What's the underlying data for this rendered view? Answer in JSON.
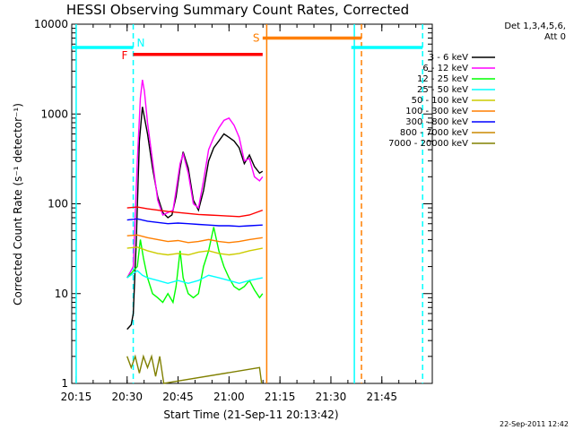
{
  "chart_data": {
    "type": "line",
    "title": "HESSI Observing Summary Count Rates, Corrected",
    "xlabel": "Start Time (21-Sep-11 20:13:42)",
    "ylabel": "Corrected Count Rate (s⁻¹ detector⁻¹)",
    "yscale": "log",
    "ylim": [
      1,
      10000
    ],
    "xlim": [
      20.2283,
      21.9975
    ],
    "x_ticks": [
      {
        "label": "20:15",
        "x": 20.25
      },
      {
        "label": "20:30",
        "x": 20.5
      },
      {
        "label": "20:45",
        "x": 20.75
      },
      {
        "label": "21:00",
        "x": 21.0
      },
      {
        "label": "21:15",
        "x": 21.25
      },
      {
        "label": "21:30",
        "x": 21.5
      },
      {
        "label": "21:45",
        "x": 21.75
      }
    ],
    "y_ticks": [
      {
        "label": "1",
        "y": 1
      },
      {
        "label": "10",
        "y": 10
      },
      {
        "label": "100",
        "y": 100
      },
      {
        "label": "1000",
        "y": 1000
      },
      {
        "label": "10000",
        "y": 10000
      }
    ],
    "legend_header": [
      "Det 1,3,4,5,6,",
      "Att 0"
    ],
    "legend_position": "right",
    "series": [
      {
        "name": "3 - 6 keV",
        "color": "#000000",
        "points": [
          [
            20.5,
            4
          ],
          [
            20.52,
            4.5
          ],
          [
            20.53,
            6
          ],
          [
            20.545,
            40
          ],
          [
            20.56,
            500
          ],
          [
            20.575,
            1200
          ],
          [
            20.6,
            600
          ],
          [
            20.625,
            250
          ],
          [
            20.65,
            120
          ],
          [
            20.675,
            80
          ],
          [
            20.7,
            70
          ],
          [
            20.72,
            75
          ],
          [
            20.74,
            120
          ],
          [
            20.76,
            250
          ],
          [
            20.775,
            380
          ],
          [
            20.8,
            250
          ],
          [
            20.825,
            110
          ],
          [
            20.85,
            85
          ],
          [
            20.875,
            140
          ],
          [
            20.9,
            300
          ],
          [
            20.925,
            420
          ],
          [
            20.95,
            500
          ],
          [
            20.975,
            600
          ],
          [
            21.0,
            550
          ],
          [
            21.025,
            500
          ],
          [
            21.05,
            420
          ],
          [
            21.075,
            280
          ],
          [
            21.1,
            350
          ],
          [
            21.125,
            260
          ],
          [
            21.15,
            220
          ],
          [
            21.165,
            230
          ]
        ]
      },
      {
        "name": "6 - 12 keV",
        "color": "#ff00ff",
        "points": [
          [
            20.5,
            15
          ],
          [
            20.53,
            20
          ],
          [
            20.55,
            300
          ],
          [
            20.565,
            1500
          ],
          [
            20.575,
            2400
          ],
          [
            20.585,
            1800
          ],
          [
            20.6,
            800
          ],
          [
            20.625,
            300
          ],
          [
            20.65,
            110
          ],
          [
            20.675,
            75
          ],
          [
            20.7,
            80
          ],
          [
            20.725,
            85
          ],
          [
            20.74,
            140
          ],
          [
            20.76,
            280
          ],
          [
            20.775,
            360
          ],
          [
            20.8,
            220
          ],
          [
            20.825,
            100
          ],
          [
            20.85,
            90
          ],
          [
            20.875,
            180
          ],
          [
            20.9,
            400
          ],
          [
            20.925,
            550
          ],
          [
            20.95,
            700
          ],
          [
            20.975,
            850
          ],
          [
            21.0,
            900
          ],
          [
            21.025,
            750
          ],
          [
            21.05,
            550
          ],
          [
            21.075,
            300
          ],
          [
            21.1,
            320
          ],
          [
            21.125,
            200
          ],
          [
            21.15,
            180
          ],
          [
            21.165,
            200
          ]
        ]
      },
      {
        "name": "12 - 25 keV",
        "color": "#00ff00",
        "points": [
          [
            20.5,
            15
          ],
          [
            20.55,
            20
          ],
          [
            20.565,
            40
          ],
          [
            20.58,
            25
          ],
          [
            20.6,
            15
          ],
          [
            20.625,
            10
          ],
          [
            20.65,
            9
          ],
          [
            20.675,
            8
          ],
          [
            20.7,
            10
          ],
          [
            20.725,
            8
          ],
          [
            20.74,
            12
          ],
          [
            20.76,
            30
          ],
          [
            20.775,
            15
          ],
          [
            20.8,
            10
          ],
          [
            20.825,
            9
          ],
          [
            20.85,
            10
          ],
          [
            20.875,
            20
          ],
          [
            20.9,
            30
          ],
          [
            20.925,
            55
          ],
          [
            20.95,
            30
          ],
          [
            20.975,
            20
          ],
          [
            21.0,
            15
          ],
          [
            21.025,
            12
          ],
          [
            21.05,
            11
          ],
          [
            21.075,
            12
          ],
          [
            21.1,
            14
          ],
          [
            21.125,
            11
          ],
          [
            21.15,
            9
          ],
          [
            21.165,
            10
          ]
        ]
      },
      {
        "name": "25 - 50 keV",
        "color": "#00ffff",
        "points": [
          [
            20.5,
            15
          ],
          [
            20.55,
            18
          ],
          [
            20.575,
            16
          ],
          [
            20.6,
            15
          ],
          [
            20.65,
            14
          ],
          [
            20.7,
            13
          ],
          [
            20.75,
            14
          ],
          [
            20.8,
            13
          ],
          [
            20.85,
            14
          ],
          [
            20.9,
            16
          ],
          [
            20.95,
            15
          ],
          [
            21.0,
            14
          ],
          [
            21.05,
            13
          ],
          [
            21.1,
            14
          ],
          [
            21.165,
            15
          ]
        ]
      },
      {
        "name": "50 - 100 keV",
        "color": "#cccc00",
        "points": [
          [
            20.5,
            32
          ],
          [
            20.55,
            33
          ],
          [
            20.6,
            30
          ],
          [
            20.65,
            28
          ],
          [
            20.7,
            27
          ],
          [
            20.75,
            28
          ],
          [
            20.8,
            27
          ],
          [
            20.85,
            29
          ],
          [
            20.9,
            30
          ],
          [
            20.95,
            28
          ],
          [
            21.0,
            27
          ],
          [
            21.05,
            28
          ],
          [
            21.1,
            30
          ],
          [
            21.165,
            32
          ]
        ]
      },
      {
        "name": "100 - 300 keV",
        "color": "#ff7f00",
        "points": [
          [
            20.5,
            44
          ],
          [
            20.55,
            45
          ],
          [
            20.6,
            42
          ],
          [
            20.65,
            40
          ],
          [
            20.7,
            38
          ],
          [
            20.75,
            39
          ],
          [
            20.8,
            37
          ],
          [
            20.85,
            38
          ],
          [
            20.9,
            40
          ],
          [
            20.95,
            38
          ],
          [
            21.0,
            37
          ],
          [
            21.05,
            38
          ],
          [
            21.1,
            40
          ],
          [
            21.165,
            42
          ]
        ]
      },
      {
        "name": "300 - 800 keV",
        "color": "#0000ff",
        "points": [
          [
            20.5,
            66
          ],
          [
            20.55,
            68
          ],
          [
            20.6,
            64
          ],
          [
            20.65,
            62
          ],
          [
            20.7,
            60
          ],
          [
            20.75,
            61
          ],
          [
            20.8,
            60
          ],
          [
            20.85,
            59
          ],
          [
            20.9,
            58
          ],
          [
            20.95,
            57
          ],
          [
            21.0,
            57
          ],
          [
            21.05,
            56
          ],
          [
            21.1,
            57
          ],
          [
            21.165,
            58
          ]
        ]
      },
      {
        "name": "800 - 7000 keV",
        "color": "#cc8800",
        "points": []
      },
      {
        "name": "7000 - 20000 keV",
        "color": "#808000",
        "points": [
          [
            20.5,
            2
          ],
          [
            20.52,
            1.5
          ],
          [
            20.54,
            2
          ],
          [
            20.56,
            1.3
          ],
          [
            20.58,
            2
          ],
          [
            20.6,
            1.5
          ],
          [
            20.62,
            2
          ],
          [
            20.64,
            1.2
          ],
          [
            20.66,
            2
          ],
          [
            20.68,
            1
          ],
          [
            21.15,
            1.5
          ],
          [
            21.16,
            1
          ]
        ]
      },
      {
        "name": "",
        "color": "#ff0000",
        "points": [
          [
            20.5,
            90
          ],
          [
            20.55,
            92
          ],
          [
            20.6,
            88
          ],
          [
            20.65,
            85
          ],
          [
            20.7,
            82
          ],
          [
            20.75,
            80
          ],
          [
            20.8,
            78
          ],
          [
            20.85,
            76
          ],
          [
            20.9,
            75
          ],
          [
            20.95,
            74
          ],
          [
            21.0,
            73
          ],
          [
            21.05,
            72
          ],
          [
            21.1,
            75
          ],
          [
            21.165,
            85
          ]
        ]
      }
    ],
    "annotations": {
      "night_bars": [
        {
          "label": "N",
          "color": "#00ffff",
          "x_start": 20.2283,
          "x_end": 20.53,
          "level": 5500
        },
        {
          "label": "",
          "color": "#00ffff",
          "x_start": 21.6,
          "x_end": 21.95,
          "level": 5500
        }
      ],
      "flare_bar": {
        "label": "F",
        "color": "#ff0000",
        "x_start": 20.53,
        "x_end": 21.165,
        "level": 4600
      },
      "saa_bar": {
        "label": "S",
        "color": "#ff7f00",
        "x_start": 21.165,
        "x_end": 21.65,
        "level": 7000
      },
      "vertical_lines": [
        {
          "x": 20.25,
          "color": "#00ffff",
          "style": "solid"
        },
        {
          "x": 20.53,
          "color": "#00ffff",
          "style": "dashed"
        },
        {
          "x": 21.185,
          "color": "#ff7f00",
          "style": "solid"
        },
        {
          "x": 21.615,
          "color": "#00ffff",
          "style": "solid"
        },
        {
          "x": 21.65,
          "color": "#ff7f00",
          "style": "dashed"
        },
        {
          "x": 21.95,
          "color": "#00ffff",
          "style": "dashed"
        }
      ]
    },
    "footer": "22-Sep-2011 12:42",
    "grid": false
  }
}
